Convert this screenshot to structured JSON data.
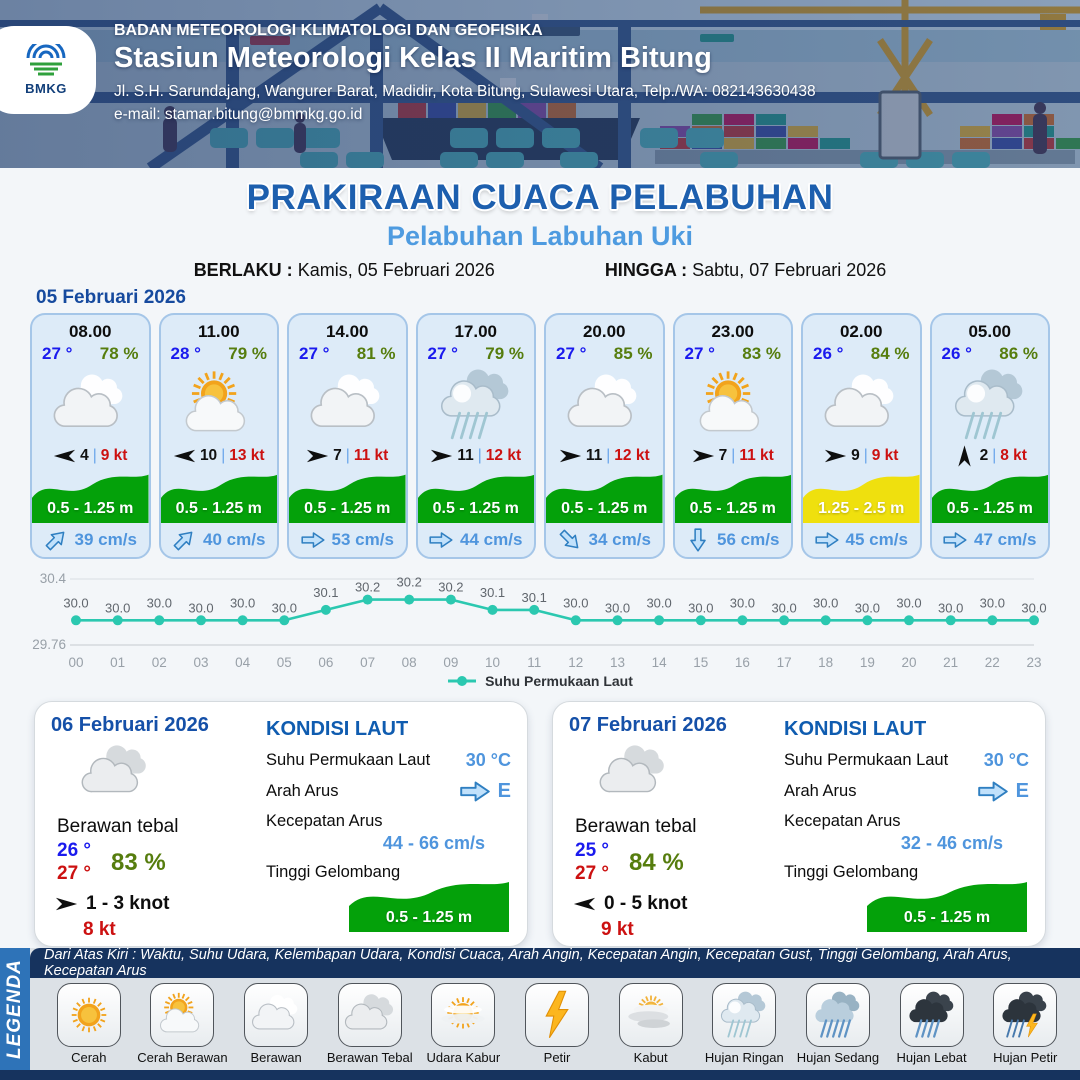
{
  "header": {
    "org_line": "BADAN METEOROLOGI KLIMATOLOGI DAN GEOFISIKA",
    "station": "Stasiun Meteorologi Kelas II Maritim Bitung",
    "address": "Jl. S.H. Sarundajang, Wangurer Barat, Madidir, Kota Bitung, Sulawesi Utara, Telp./WA: 082143630438",
    "email_line": "e-mail: stamar.bitung@bmmkg.go.id",
    "logo_text": "BMKG"
  },
  "title": {
    "main": "PRAKIRAAN CUACA PELABUHAN",
    "subtitle": "Pelabuhan Labuhan Uki",
    "berlaku_label": "BERLAKU :",
    "berlaku_value": "Kamis, 05 Februari 2026",
    "hingga_label": "HINGGA :",
    "hingga_value": "Sabtu, 07 Februari 2026"
  },
  "hourly": {
    "date_label": "05 Februari 2026",
    "wind_separator": "|",
    "cards": [
      {
        "time": "08.00",
        "temp": "27 °",
        "humidity": "78 %",
        "icon": "berawan",
        "wind_dir": "W",
        "wind_speed": "4",
        "gust": "9 kt",
        "wave_label": "0.5 - 1.25 m",
        "wave_color": "#04a10a",
        "current_dir": "NE",
        "current_speed": "39 cm/s"
      },
      {
        "time": "11.00",
        "temp": "28 °",
        "humidity": "79 %",
        "icon": "cerah-berawan",
        "wind_dir": "W",
        "wind_speed": "10",
        "gust": "13 kt",
        "wave_label": "0.5 - 1.25 m",
        "wave_color": "#04a10a",
        "current_dir": "NE",
        "current_speed": "40 cm/s"
      },
      {
        "time": "14.00",
        "temp": "27 °",
        "humidity": "81 %",
        "icon": "berawan",
        "wind_dir": "E",
        "wind_speed": "7",
        "gust": "11 kt",
        "wave_label": "0.5 - 1.25 m",
        "wave_color": "#04a10a",
        "current_dir": "E",
        "current_speed": "53 cm/s"
      },
      {
        "time": "17.00",
        "temp": "27 °",
        "humidity": "79 %",
        "icon": "hujan-ringan",
        "wind_dir": "E",
        "wind_speed": "11",
        "gust": "12 kt",
        "wave_label": "0.5 - 1.25 m",
        "wave_color": "#04a10a",
        "current_dir": "E",
        "current_speed": "44 cm/s"
      },
      {
        "time": "20.00",
        "temp": "27 °",
        "humidity": "85 %",
        "icon": "berawan",
        "wind_dir": "E",
        "wind_speed": "11",
        "gust": "12 kt",
        "wave_label": "0.5 - 1.25 m",
        "wave_color": "#04a10a",
        "current_dir": "SE",
        "current_speed": "34 cm/s"
      },
      {
        "time": "23.00",
        "temp": "27 °",
        "humidity": "83 %",
        "icon": "cerah-berawan",
        "wind_dir": "E",
        "wind_speed": "7",
        "gust": "11 kt",
        "wave_label": "0.5 - 1.25 m",
        "wave_color": "#04a10a",
        "current_dir": "S",
        "current_speed": "56 cm/s"
      },
      {
        "time": "02.00",
        "temp": "26 °",
        "humidity": "84 %",
        "icon": "berawan",
        "wind_dir": "E",
        "wind_speed": "9",
        "gust": "9 kt",
        "wave_label": "1.25 - 2.5 m",
        "wave_color": "#efe00e",
        "current_dir": "E",
        "current_speed": "45 cm/s"
      },
      {
        "time": "05.00",
        "temp": "26 °",
        "humidity": "86 %",
        "icon": "hujan-ringan",
        "wind_dir": "N",
        "wind_speed": "2",
        "gust": "8 kt",
        "wave_label": "0.5 - 1.25 m",
        "wave_color": "#04a10a",
        "current_dir": "E",
        "current_speed": "47 cm/s"
      }
    ]
  },
  "chart_data": {
    "type": "line",
    "x": [
      "00",
      "01",
      "02",
      "03",
      "04",
      "05",
      "06",
      "07",
      "08",
      "09",
      "10",
      "11",
      "12",
      "13",
      "14",
      "15",
      "16",
      "17",
      "18",
      "19",
      "20",
      "21",
      "22",
      "23"
    ],
    "series": [
      {
        "name": "Suhu Permukaan Laut",
        "values": [
          30.0,
          30.0,
          30.0,
          30.0,
          30.0,
          30.0,
          30.1,
          30.2,
          30.2,
          30.2,
          30.1,
          30.1,
          30.0,
          30.0,
          30.0,
          30.0,
          30.0,
          30.0,
          30.0,
          30.0,
          30.0,
          30.0,
          30.0,
          30.0
        ]
      }
    ],
    "ylim": [
      29.76,
      30.4
    ],
    "y_tick_labels": [
      "30.4",
      "29.76"
    ],
    "line_color": "#2bc8b0",
    "grid": true,
    "legend_position": "bottom"
  },
  "daily_cards": [
    {
      "date": "06 Februari 2026",
      "icon": "berawan-tebal",
      "condition": "Berawan tebal",
      "temp_min": "26 °",
      "temp_max": "27 °",
      "humidity": "83 %",
      "wind_dir": "E",
      "wind_range": "1 - 3 knot",
      "gust": "8 kt",
      "sea": {
        "heading": "KONDISI LAUT",
        "sst_label": "Suhu Permukaan Laut",
        "sst": "30 °C",
        "current_dir_label": "Arah Arus",
        "current_dir": "E",
        "current_speed_label": "Kecepatan Arus",
        "current_speed": "44 - 66 cm/s",
        "wave_label": "Tinggi Gelombang",
        "wave": "0.5 - 1.25 m",
        "wave_color": "#04a10a"
      }
    },
    {
      "date": "07 Februari 2026",
      "icon": "berawan-tebal",
      "condition": "Berawan tebal",
      "temp_min": "25 °",
      "temp_max": "27 °",
      "humidity": "84 %",
      "wind_dir": "W",
      "wind_range": "0 - 5 knot",
      "gust": "9 kt",
      "sea": {
        "heading": "KONDISI LAUT",
        "sst_label": "Suhu Permukaan Laut",
        "sst": "30 °C",
        "current_dir_label": "Arah Arus",
        "current_dir": "E",
        "current_speed_label": "Kecepatan Arus",
        "current_speed": "32 - 46 cm/s",
        "wave_label": "Tinggi Gelombang",
        "wave": "0.5 - 1.25 m",
        "wave_color": "#04a10a"
      }
    }
  ],
  "legend": {
    "band_label": "LEGENDA",
    "note": "Dari Atas Kiri : Waktu, Suhu Udara, Kelembapan Udara, Kondisi Cuaca, Arah Angin, Kecepatan Angin, Kecepatan Gust, Tinggi Gelombang, Arah Arus, Kecepatan Arus",
    "items": [
      {
        "icon": "cerah",
        "label": "Cerah"
      },
      {
        "icon": "cerah-berawan",
        "label": "Cerah Berawan"
      },
      {
        "icon": "berawan",
        "label": "Berawan"
      },
      {
        "icon": "berawan-tebal",
        "label": "Berawan Tebal"
      },
      {
        "icon": "udara-kabur",
        "label": "Udara Kabur"
      },
      {
        "icon": "petir",
        "label": "Petir"
      },
      {
        "icon": "kabut",
        "label": "Kabut"
      },
      {
        "icon": "hujan-ringan",
        "label": "Hujan Ringan"
      },
      {
        "icon": "hujan-sedang",
        "label": "Hujan Sedang"
      },
      {
        "icon": "hujan-lebat",
        "label": "Hujan Lebat"
      },
      {
        "icon": "hujan-petir",
        "label": "Hujan Petir"
      }
    ]
  },
  "colors": {
    "title_blue": "#1d5fae",
    "subtitle_blue": "#4e9be0",
    "date_blue": "#164a9e",
    "temp_blue": "#1a1aee",
    "humidity_green": "#567d0e",
    "gust_red": "#cc1111",
    "wave_green": "#04a10a",
    "wave_yellow": "#efe00e",
    "current_blue": "#4f95dd",
    "chart_teal": "#2bc8b0",
    "navy": "#16335e",
    "band_blue": "#2e73b8"
  }
}
